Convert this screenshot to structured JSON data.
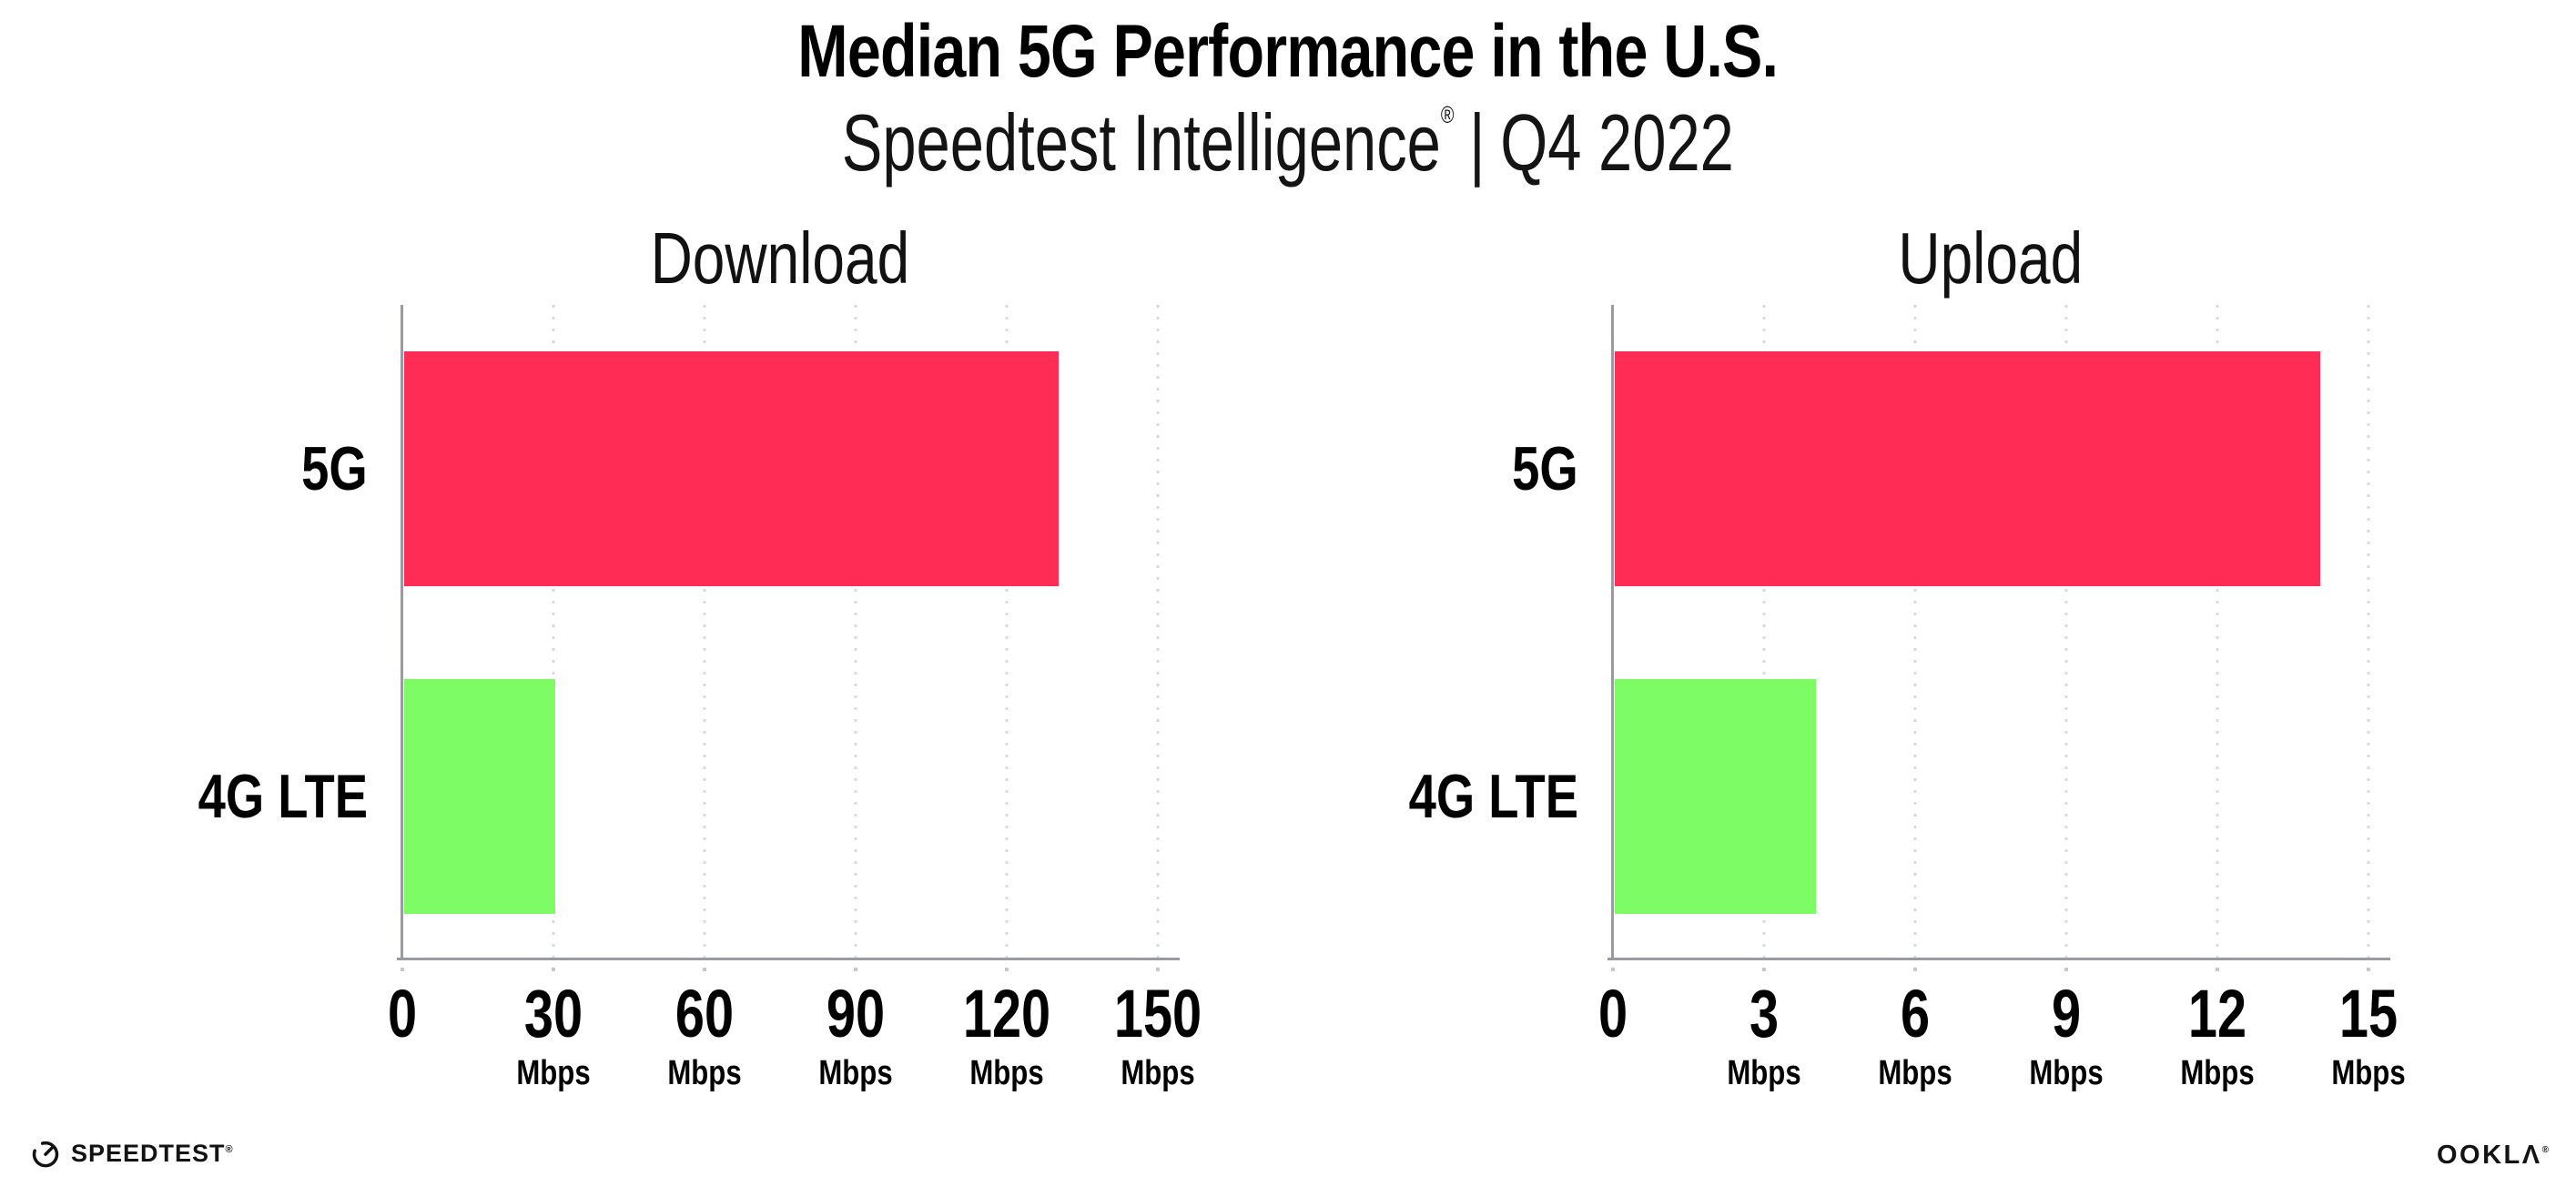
{
  "title": "Median 5G Performance in the U.S.",
  "subtitle": {
    "brand": "Speedtest Intelligence",
    "registered_mark": "®",
    "separator": "|",
    "period": "Q4 2022"
  },
  "chart_data": [
    {
      "type": "bar",
      "orientation": "horizontal",
      "title": "Download",
      "categories": [
        "5G",
        "4G LTE"
      ],
      "values": [
        130,
        30
      ],
      "unit": "Mbps",
      "xlim": [
        0,
        150
      ],
      "xticks": [
        0,
        30,
        60,
        90,
        120,
        150
      ],
      "xtick_unit": "Mbps",
      "unit_on_zero": false,
      "grid": "vertical-dotted",
      "legend": "none",
      "bar_colors": [
        "#FF2D55",
        "#7EFC66"
      ]
    },
    {
      "type": "bar",
      "orientation": "horizontal",
      "title": "Upload",
      "categories": [
        "5G",
        "4G LTE"
      ],
      "values": [
        14,
        4
      ],
      "unit": "Mbps",
      "xlim": [
        0,
        15
      ],
      "xticks": [
        0,
        3,
        6,
        9,
        12,
        15
      ],
      "xtick_unit": "Mbps",
      "unit_on_zero": false,
      "grid": "vertical-dotted",
      "legend": "none",
      "bar_colors": [
        "#FF2D55",
        "#7EFC66"
      ]
    }
  ],
  "footer": {
    "speedtest_icon": "gauge-icon",
    "speedtest_wordmark": "SPEEDTEST",
    "speedtest_trademark": "®",
    "ookla_wordmark": "OOKLΛ",
    "ookla_trademark": "®"
  },
  "colors": {
    "bar_5g": "#FF2D55",
    "bar_4g_lte": "#7EFC66",
    "axis": "#9A9AA2",
    "gridline": "#D9D9E3",
    "text": "#000000",
    "background": "#FFFFFF"
  }
}
